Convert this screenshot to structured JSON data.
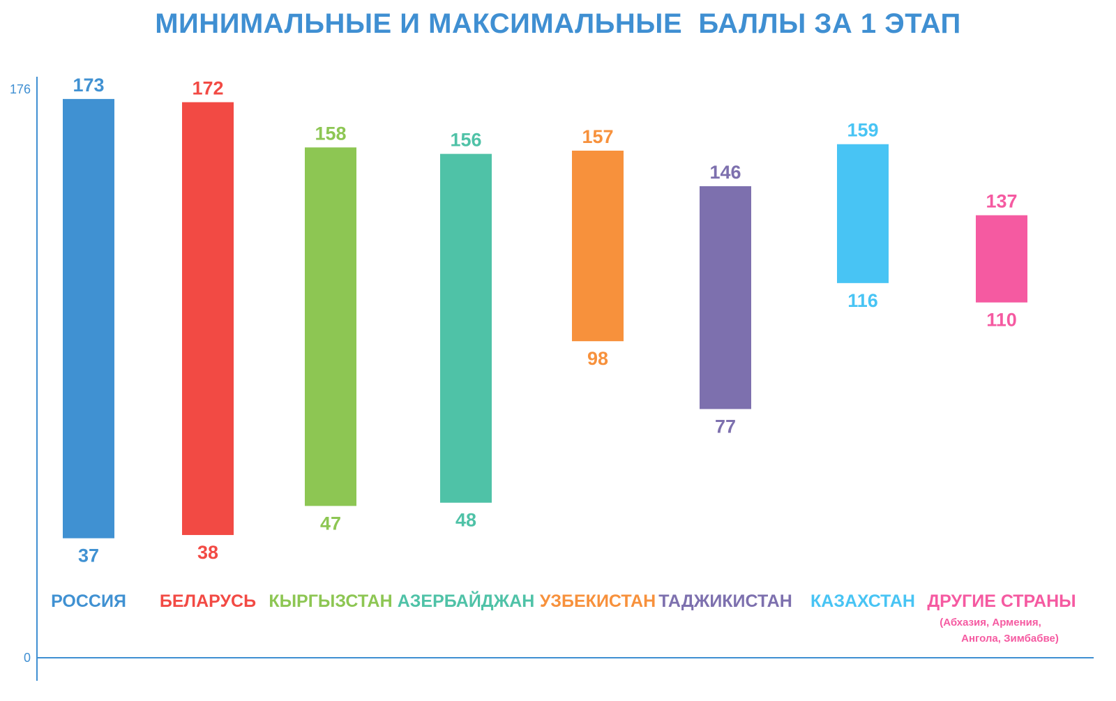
{
  "chart_data": {
    "type": "bar",
    "subtype": "floating-range",
    "title": "МИНИМАЛЬНЫЕ И МАКСИМАЛЬНЫЕ  БАЛЛЫ ЗА 1 ЭТАП",
    "xlabel": "",
    "ylabel": "",
    "ylim": [
      0,
      176
    ],
    "y_ticks": [
      "176",
      "0"
    ],
    "grid": false,
    "categories": [
      "РОССИЯ",
      "БЕЛАРУСЬ",
      "КЫРГЫЗСТАН",
      "АЗЕРБАЙДЖАН",
      "УЗБЕКИСТАН",
      "ТАДЖИКИСТАН",
      "КАЗАХСТАН",
      "ДРУГИЕ СТРАНЫ"
    ],
    "category_notes": [
      "",
      "",
      "",
      "",
      "",
      "",
      "",
      "(Абхазия,  Армения,\nАнгола,  Зимбабве)"
    ],
    "series": [
      {
        "values_min": [
          37,
          38,
          47,
          48,
          98,
          77,
          116,
          110
        ],
        "values_max": [
          173,
          172,
          158,
          156,
          157,
          146,
          159,
          137
        ]
      }
    ],
    "colors": [
      "#4091d2",
      "#f24a44",
      "#8dc653",
      "#4fc2a7",
      "#f7913c",
      "#7d70ae",
      "#48c4f4",
      "#f55aa1"
    ]
  }
}
